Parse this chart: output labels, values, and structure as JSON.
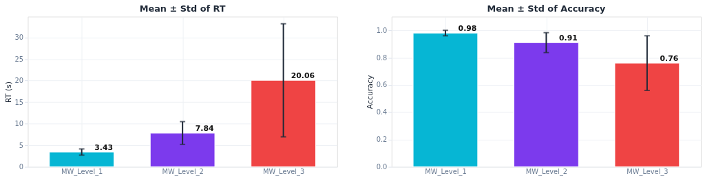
{
  "chart_data": [
    {
      "type": "bar",
      "title": "Mean ± Std of RT",
      "ylabel": "RT (s)",
      "categories": [
        "MW_Level_1",
        "MW_Level_2",
        "MW_Level_3"
      ],
      "values": [
        3.43,
        7.84,
        20.06
      ],
      "errors": [
        0.72,
        2.64,
        13.1
      ],
      "colors": [
        "#06b6d4",
        "#7c3aed",
        "#ef4444"
      ],
      "ylim": [
        0,
        34.8
      ],
      "yticks": [
        0,
        5,
        10,
        15,
        20,
        25,
        30
      ],
      "grid": true,
      "data_labels": true
    },
    {
      "type": "bar",
      "title": "Mean ± Std of Accuracy",
      "ylabel": "Accuracy",
      "categories": [
        "MW_Level_1",
        "MW_Level_2",
        "MW_Level_3"
      ],
      "values": [
        0.98,
        0.91,
        0.76
      ],
      "errors": [
        0.02,
        0.073,
        0.2
      ],
      "colors": [
        "#06b6d4",
        "#7c3aed",
        "#ef4444"
      ],
      "ylim": [
        0,
        1.1
      ],
      "yticks": [
        {
          "value": 0,
          "label": "0.0"
        },
        0.2,
        0.4,
        0.6,
        0.8,
        {
          "value": 1,
          "label": "1.0"
        }
      ],
      "grid": true,
      "data_labels": true
    }
  ]
}
